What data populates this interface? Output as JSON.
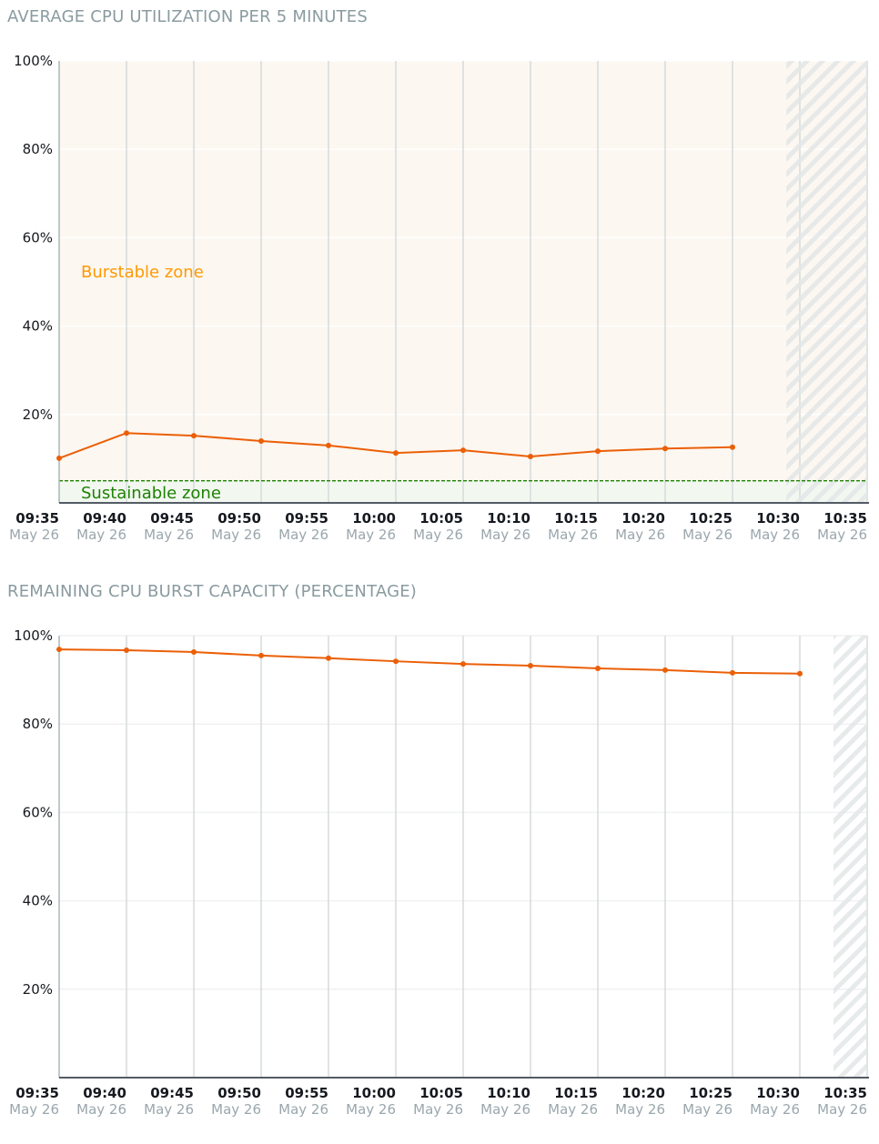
{
  "chart_data": [
    {
      "type": "line",
      "title": "AVERAGE CPU UTILIZATION PER 5 MINUTES",
      "xlabel": "",
      "ylabel": "",
      "ylim": [
        0,
        100
      ],
      "y_ticks": [
        "20%",
        "40%",
        "60%",
        "80%",
        "100%"
      ],
      "x_ticks": [
        {
          "time": "09:35",
          "date": "May 26"
        },
        {
          "time": "09:40",
          "date": "May 26"
        },
        {
          "time": "09:45",
          "date": "May 26"
        },
        {
          "time": "09:50",
          "date": "May 26"
        },
        {
          "time": "09:55",
          "date": "May 26"
        },
        {
          "time": "10:00",
          "date": "May 26"
        },
        {
          "time": "10:05",
          "date": "May 26"
        },
        {
          "time": "10:10",
          "date": "May 26"
        },
        {
          "time": "10:15",
          "date": "May 26"
        },
        {
          "time": "10:20",
          "date": "May 26"
        },
        {
          "time": "10:25",
          "date": "May 26"
        },
        {
          "time": "10:30",
          "date": "May 26"
        },
        {
          "time": "10:35",
          "date": "May 26"
        }
      ],
      "x": [
        "09:35",
        "09:40",
        "09:45",
        "09:50",
        "09:55",
        "10:00",
        "10:05",
        "10:10",
        "10:15",
        "10:20",
        "10:25"
      ],
      "values": [
        10.1,
        15.8,
        15.2,
        14.0,
        13.0,
        11.3,
        11.9,
        10.5,
        11.7,
        12.3,
        12.6
      ],
      "sustainable_threshold": 5,
      "annotations": {
        "burstable": "Burstable zone",
        "sustainable": "Sustainable zone"
      },
      "no_data_from": "10:29",
      "grid": true,
      "colors": {
        "line": "#eb5f07",
        "burstable_bg": "#fcf7f1",
        "sustainable_bg": "#f2f8f0",
        "threshold": "#1d8102",
        "burstable_text": "#ff9900"
      }
    },
    {
      "type": "line",
      "title": "REMAINING CPU BURST CAPACITY (PERCENTAGE)",
      "xlabel": "",
      "ylabel": "",
      "ylim": [
        0,
        100
      ],
      "y_ticks": [
        "20%",
        "40%",
        "60%",
        "80%",
        "100%"
      ],
      "x_ticks": [
        {
          "time": "09:35",
          "date": "May 26"
        },
        {
          "time": "09:40",
          "date": "May 26"
        },
        {
          "time": "09:45",
          "date": "May 26"
        },
        {
          "time": "09:50",
          "date": "May 26"
        },
        {
          "time": "09:55",
          "date": "May 26"
        },
        {
          "time": "10:00",
          "date": "May 26"
        },
        {
          "time": "10:05",
          "date": "May 26"
        },
        {
          "time": "10:10",
          "date": "May 26"
        },
        {
          "time": "10:15",
          "date": "May 26"
        },
        {
          "time": "10:20",
          "date": "May 26"
        },
        {
          "time": "10:25",
          "date": "May 26"
        },
        {
          "time": "10:30",
          "date": "May 26"
        },
        {
          "time": "10:35",
          "date": "May 26"
        }
      ],
      "x": [
        "09:35",
        "09:40",
        "09:45",
        "09:50",
        "09:55",
        "10:00",
        "10:05",
        "10:10",
        "10:15",
        "10:20",
        "10:25",
        "10:30"
      ],
      "values": [
        96.9,
        96.7,
        96.3,
        95.5,
        94.9,
        94.2,
        93.6,
        93.2,
        92.6,
        92.2,
        91.6,
        91.4
      ],
      "no_data_from": "10:32.5",
      "grid": true,
      "colors": {
        "line": "#eb5f07"
      }
    }
  ]
}
